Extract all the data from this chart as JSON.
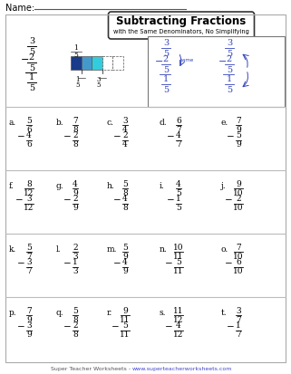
{
  "title": "Subtracting Fractions",
  "subtitle": "with the Same Denominators, No Simplifying",
  "footer_text": "Super Teacher Worksheets - ",
  "footer_url": "www.superteacherworksheets.com",
  "footer_url_color": "#4444cc",
  "problems": [
    {
      "label": "a.",
      "top_num": "5",
      "top_den": "6",
      "bot_num": "4",
      "bot_den": "6"
    },
    {
      "label": "b.",
      "top_num": "7",
      "top_den": "8",
      "bot_num": "2",
      "bot_den": "8"
    },
    {
      "label": "c.",
      "top_num": "3",
      "top_den": "4",
      "bot_num": "2",
      "bot_den": "4"
    },
    {
      "label": "d.",
      "top_num": "6",
      "top_den": "7",
      "bot_num": "4",
      "bot_den": "7"
    },
    {
      "label": "e.",
      "top_num": "7",
      "top_den": "9",
      "bot_num": "5",
      "bot_den": "9"
    },
    {
      "label": "f.",
      "top_num": "8",
      "top_den": "12",
      "bot_num": "3",
      "bot_den": "12"
    },
    {
      "label": "g.",
      "top_num": "4",
      "top_den": "9",
      "bot_num": "2",
      "bot_den": "9"
    },
    {
      "label": "h.",
      "top_num": "5",
      "top_den": "8",
      "bot_num": "4",
      "bot_den": "8"
    },
    {
      "label": "i.",
      "top_num": "4",
      "top_den": "5",
      "bot_num": "1",
      "bot_den": "5"
    },
    {
      "label": "j.",
      "top_num": "9",
      "top_den": "10",
      "bot_num": "2",
      "bot_den": "10"
    },
    {
      "label": "k.",
      "top_num": "5",
      "top_den": "7",
      "bot_num": "3",
      "bot_den": "7"
    },
    {
      "label": "l.",
      "top_num": "2",
      "top_den": "3",
      "bot_num": "1",
      "bot_den": "3"
    },
    {
      "label": "m.",
      "top_num": "5",
      "top_den": "9",
      "bot_num": "4",
      "bot_den": "9"
    },
    {
      "label": "n.",
      "top_num": "10",
      "top_den": "11",
      "bot_num": "5",
      "bot_den": "11"
    },
    {
      "label": "o.",
      "top_num": "7",
      "top_den": "10",
      "bot_num": "6",
      "bot_den": "10"
    },
    {
      "label": "p.",
      "top_num": "7",
      "top_den": "9",
      "bot_num": "3",
      "bot_den": "9"
    },
    {
      "label": "q.",
      "top_num": "5",
      "top_den": "8",
      "bot_num": "2",
      "bot_den": "8"
    },
    {
      "label": "r.",
      "top_num": "9",
      "top_den": "11",
      "bot_num": "5",
      "bot_den": "11"
    },
    {
      "label": "s.",
      "top_num": "11",
      "top_den": "12",
      "bot_num": "4",
      "bot_den": "12"
    },
    {
      "label": "t.",
      "top_num": "3",
      "top_den": "7",
      "bot_num": "1",
      "bot_den": "7"
    }
  ],
  "bg_color": "#ffffff",
  "border_color": "#aaaaaa",
  "example_blue_color": "#3344bb",
  "bar_dark_blue": "#1a3a8a",
  "bar_mid_blue": "#4499cc",
  "bar_light_blue": "#33ccdd",
  "row_divider_color": "#bbbbbb",
  "name_line_color": "#555555",
  "title_border_color": "#333333"
}
